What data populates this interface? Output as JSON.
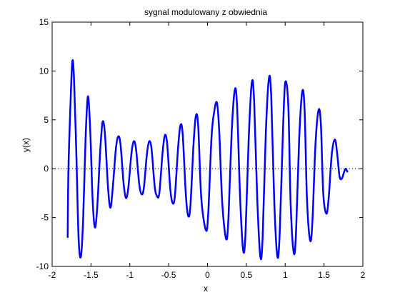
{
  "chart_data": {
    "type": "line",
    "title": "sygnal modulowany z obwiednia",
    "xlabel": "x",
    "ylabel": "y(x)",
    "xlim": [
      -2,
      2
    ],
    "ylim": [
      -10,
      15
    ],
    "xticks": [
      -2,
      -1.5,
      -1,
      -0.5,
      0,
      0.5,
      1,
      1.5,
      2
    ],
    "xtick_labels": [
      "-2",
      "-1.5",
      "-1",
      "-0.5",
      "0",
      "0.5",
      "1",
      "1.5",
      "2"
    ],
    "yticks": [
      -10,
      -5,
      0,
      5,
      10,
      15
    ],
    "ytick_labels": [
      "-10",
      "-5",
      "0",
      "5",
      "10",
      "15"
    ],
    "grid": false,
    "series": [
      {
        "color": "#0000ff",
        "style": "solid",
        "points": [
          [
            -1.8,
            -7.0
          ],
          [
            -1.79,
            0.0
          ],
          [
            -1.76,
            7.5
          ],
          [
            -1.74,
            11.0
          ],
          [
            -1.72,
            9.5
          ],
          [
            -1.69,
            2.0
          ],
          [
            -1.66,
            -7.0
          ],
          [
            -1.63,
            -9.0
          ],
          [
            -1.6,
            -5.0
          ],
          [
            -1.57,
            3.0
          ],
          [
            -1.54,
            7.4
          ],
          [
            -1.51,
            4.0
          ],
          [
            -1.48,
            -3.0
          ],
          [
            -1.45,
            -6.0
          ],
          [
            -1.42,
            -4.0
          ],
          [
            -1.38,
            2.0
          ],
          [
            -1.35,
            4.8
          ],
          [
            -1.32,
            3.5
          ],
          [
            -1.28,
            -2.0
          ],
          [
            -1.25,
            -4.0
          ],
          [
            -1.22,
            -2.0
          ],
          [
            -1.18,
            2.0
          ],
          [
            -1.15,
            3.3
          ],
          [
            -1.12,
            2.5
          ],
          [
            -1.08,
            -1.5
          ],
          [
            -1.05,
            -3.0
          ],
          [
            -1.02,
            -2.0
          ],
          [
            -0.98,
            1.5
          ],
          [
            -0.95,
            2.8
          ],
          [
            -0.92,
            2.0
          ],
          [
            -0.88,
            -1.5
          ],
          [
            -0.85,
            -2.6
          ],
          [
            -0.82,
            -2.0
          ],
          [
            -0.78,
            1.5
          ],
          [
            -0.75,
            2.8
          ],
          [
            -0.72,
            2.0
          ],
          [
            -0.68,
            -1.8
          ],
          [
            -0.65,
            -2.8
          ],
          [
            -0.62,
            -2.5
          ],
          [
            -0.58,
            1.5
          ],
          [
            -0.55,
            3.4
          ],
          [
            -0.52,
            2.6
          ],
          [
            -0.48,
            -2.0
          ],
          [
            -0.45,
            -3.5
          ],
          [
            -0.42,
            -2.8
          ],
          [
            -0.38,
            2.0
          ],
          [
            -0.35,
            4.4
          ],
          [
            -0.32,
            3.6
          ],
          [
            -0.28,
            -2.5
          ],
          [
            -0.25,
            -4.8
          ],
          [
            -0.22,
            -3.8
          ],
          [
            -0.18,
            2.5
          ],
          [
            -0.15,
            5.4
          ],
          [
            -0.12,
            4.4
          ],
          [
            -0.08,
            -3.0
          ],
          [
            -0.02,
            -6.3
          ],
          [
            0.01,
            -4.5
          ],
          [
            0.05,
            3.0
          ],
          [
            0.08,
            5.5
          ],
          [
            0.12,
            6.8
          ],
          [
            0.15,
            4.0
          ],
          [
            0.19,
            -3.5
          ],
          [
            0.24,
            -7.2
          ],
          [
            0.27,
            -5.0
          ],
          [
            0.31,
            3.5
          ],
          [
            0.35,
            8.0
          ],
          [
            0.38,
            6.5
          ],
          [
            0.42,
            -3.0
          ],
          [
            0.46,
            -8.4
          ],
          [
            0.49,
            -6.5
          ],
          [
            0.53,
            3.0
          ],
          [
            0.57,
            8.8
          ],
          [
            0.6,
            7.0
          ],
          [
            0.64,
            -3.0
          ],
          [
            0.68,
            -9.0
          ],
          [
            0.71,
            -7.0
          ],
          [
            0.75,
            3.5
          ],
          [
            0.79,
            9.2
          ],
          [
            0.82,
            7.5
          ],
          [
            0.86,
            -3.5
          ],
          [
            0.9,
            -9.0
          ],
          [
            0.93,
            -6.5
          ],
          [
            0.97,
            3.5
          ],
          [
            1.0,
            8.8
          ],
          [
            1.04,
            6.5
          ],
          [
            1.07,
            -3.5
          ],
          [
            1.11,
            -8.6
          ],
          [
            1.14,
            -6.5
          ],
          [
            1.18,
            3.0
          ],
          [
            1.22,
            7.9
          ],
          [
            1.25,
            6.0
          ],
          [
            1.28,
            -3.0
          ],
          [
            1.32,
            -7.3
          ],
          [
            1.35,
            -5.5
          ],
          [
            1.39,
            2.5
          ],
          [
            1.43,
            6.0
          ],
          [
            1.46,
            4.5
          ],
          [
            1.49,
            -2.5
          ],
          [
            1.53,
            -4.6
          ],
          [
            1.56,
            -3.0
          ],
          [
            1.6,
            1.5
          ],
          [
            1.64,
            3.0
          ],
          [
            1.67,
            1.5
          ],
          [
            1.7,
            -0.8
          ],
          [
            1.73,
            -1.0
          ],
          [
            1.76,
            -0.3
          ],
          [
            1.78,
            0.0
          ],
          [
            1.8,
            -0.3
          ]
        ]
      },
      {
        "color": "#000000",
        "style": "dotted",
        "points": [
          [
            -2,
            0
          ],
          [
            2,
            0
          ]
        ]
      }
    ]
  }
}
